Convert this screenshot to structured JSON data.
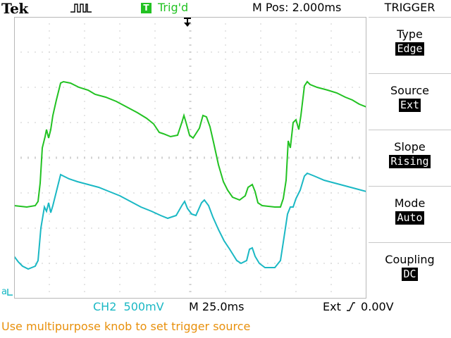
{
  "header": {
    "brand": "Tek",
    "trigger_state_badge": "T",
    "trigger_status": "Trig'd",
    "m_pos": "M Pos: 2.000ms"
  },
  "menu": {
    "title": "TRIGGER",
    "items": [
      {
        "label": "Type",
        "value": "Edge"
      },
      {
        "label": "Source",
        "value": "Ext"
      },
      {
        "label": "Slope",
        "value": "Rising"
      },
      {
        "label": "Mode",
        "value": "Auto"
      },
      {
        "label": "Coupling",
        "value": "DC"
      }
    ]
  },
  "status_bar": {
    "channel": "CH2  500mV",
    "timebase": "M 25.0ms",
    "trigger_prefix": "Ext",
    "trigger_level": "0.00V"
  },
  "hint": "Use multipurpose knob to set trigger source",
  "colors": {
    "ch1": "#22c222",
    "ch2": "#1ab8c4",
    "hint": "#e8900c",
    "grid": "#b8b8b8"
  },
  "icons": {
    "acquisition": "pulse-icon",
    "trigger_position": "trigger-position-arrow-icon",
    "slope": "rising-edge-icon"
  }
}
